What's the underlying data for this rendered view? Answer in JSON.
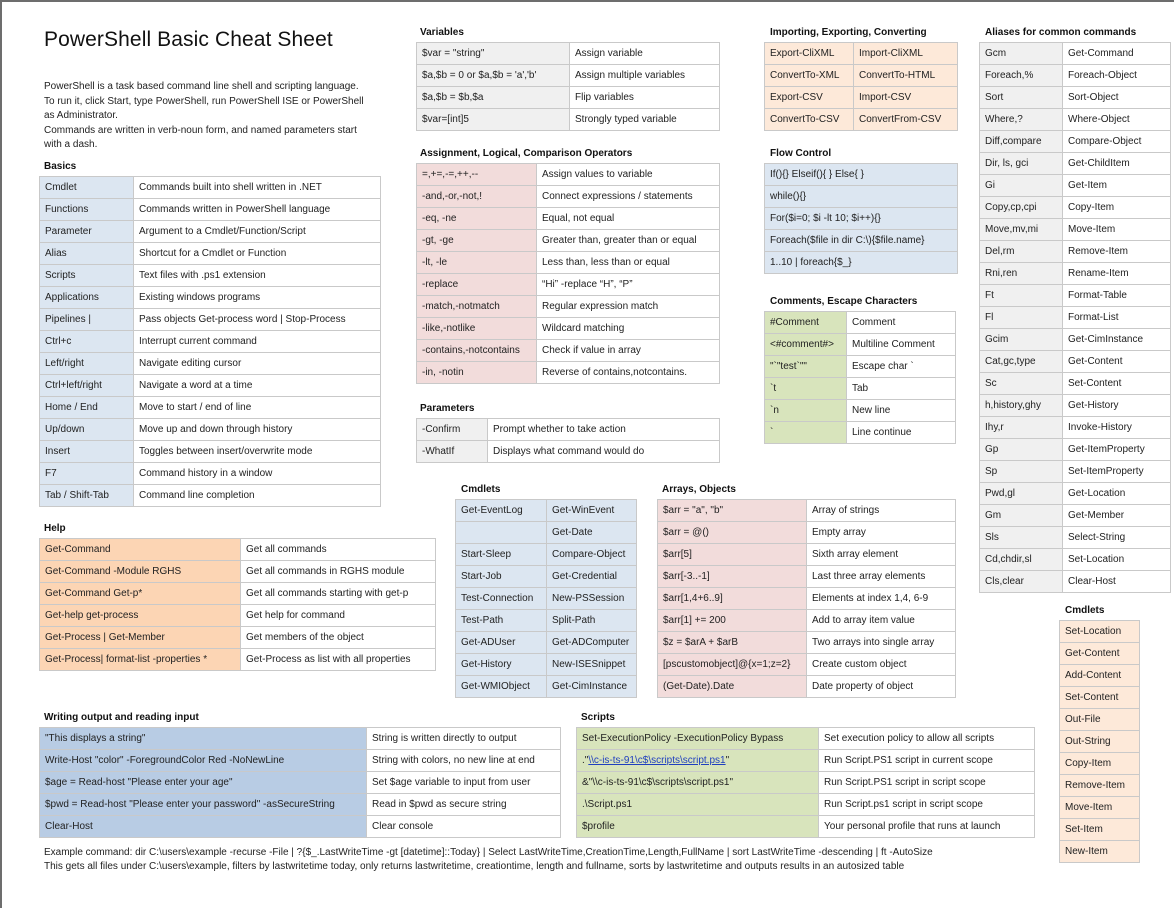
{
  "document": {
    "title": "PowerShell Basic Cheat Sheet",
    "intro": [
      "PowerShell is a task based command line shell and scripting language.  To run it, click Start, type PowerShell, run PowerShell ISE or PowerShell as Administrator.",
      "Commands are written in verb-noun form, and named parameters start with a dash."
    ]
  },
  "basics": {
    "heading": "Basics",
    "rows": [
      {
        "k": "Cmdlet",
        "v": "Commands built into shell written in .NET"
      },
      {
        "k": "Functions",
        "v": "Commands written in PowerShell language"
      },
      {
        "k": "Parameter",
        "v": "Argument to a Cmdlet/Function/Script"
      },
      {
        "k": "Alias",
        "v": "Shortcut for a Cmdlet or Function"
      },
      {
        "k": "Scripts",
        "v": "Text files with .ps1 extension"
      },
      {
        "k": "Applications",
        "v": "Existing windows programs"
      },
      {
        "k": "Pipelines |",
        "v": "Pass objects Get-process word | Stop-Process"
      },
      {
        "k": "Ctrl+c",
        "v": "Interrupt current command"
      },
      {
        "k": "Left/right",
        "v": "Navigate editing cursor"
      },
      {
        "k": "Ctrl+left/right",
        "v": "Navigate a word at a time"
      },
      {
        "k": "Home / End",
        "v": "Move to start / end of line"
      },
      {
        "k": "Up/down",
        "v": "Move up and down through history"
      },
      {
        "k": "Insert",
        "v": "Toggles between insert/overwrite mode"
      },
      {
        "k": "F7",
        "v": "Command history in a window"
      },
      {
        "k": "Tab / Shift-Tab",
        "v": "Command line completion"
      }
    ]
  },
  "help": {
    "heading": "Help",
    "rows": [
      {
        "k": "Get-Command",
        "v": "Get all commands"
      },
      {
        "k": "Get-Command -Module RGHS",
        "v": "Get all commands in RGHS module"
      },
      {
        "k": "Get-Command Get-p*",
        "v": "Get all commands starting with get-p"
      },
      {
        "k": "Get-help get-process",
        "v": "Get help for command"
      },
      {
        "k": "Get-Process | Get-Member",
        "v": "Get members of the object"
      },
      {
        "k": "Get-Process| format-list -properties *",
        "v": "Get-Process  as list with all properties"
      }
    ]
  },
  "variables": {
    "heading": "Variables",
    "rows": [
      {
        "k": "$var = \"string\"",
        "v": "Assign variable"
      },
      {
        "k": "$a,$b = 0 or $a,$b = 'a','b'",
        "v": "Assign multiple variables"
      },
      {
        "k": "$a,$b = $b,$a",
        "v": "Flip variables"
      },
      {
        "k": "$var=[int]5",
        "v": "Strongly typed variable"
      }
    ]
  },
  "operators": {
    "heading": "Assignment, Logical, Comparison Operators",
    "rows": [
      {
        "k": "=,+=,-=,++,--",
        "v": "Assign values to variable"
      },
      {
        "k": "-and,-or,-not,!",
        "v": "Connect expressions / statements"
      },
      {
        "k": "-eq, -ne",
        "v": "Equal, not equal"
      },
      {
        "k": "-gt, -ge",
        "v": "Greater than, greater than or equal"
      },
      {
        "k": "-lt, -le",
        "v": "Less than, less than or equal"
      },
      {
        "k": "-replace",
        "v": "“Hi” -replace “H”, “P”"
      },
      {
        "k": "-match,-notmatch",
        "v": "Regular expression match"
      },
      {
        "k": "-like,-notlike",
        "v": "Wildcard matching"
      },
      {
        "k": "-contains,-notcontains",
        "v": "Check if value in array"
      },
      {
        "k": "-in, -notin",
        "v": "Reverse of contains,notcontains."
      }
    ]
  },
  "parameters": {
    "heading": "Parameters",
    "rows": [
      {
        "k": "-Confirm",
        "v": "Prompt whether to take action"
      },
      {
        "k": "-WhatIf",
        "v": "Displays what command would do"
      }
    ]
  },
  "cmdlets_mid": {
    "heading": "Cmdlets",
    "rows": [
      {
        "a": "Get-EventLog",
        "b": "Get-WinEvent"
      },
      {
        "a": "",
        "b": "Get-Date"
      },
      {
        "a": "Start-Sleep",
        "b": "Compare-Object"
      },
      {
        "a": "Start-Job",
        "b": "Get-Credential"
      },
      {
        "a": "Test-Connection",
        "b": "New-PSSession"
      },
      {
        "a": "Test-Path",
        "b": "Split-Path"
      },
      {
        "a": "Get-ADUser",
        "b": "Get-ADComputer"
      },
      {
        "a": "Get-History",
        "b": "New-ISESnippet"
      },
      {
        "a": "Get-WMIObject",
        "b": "Get-CimInstance"
      }
    ]
  },
  "arrays": {
    "heading": "Arrays, Objects",
    "rows": [
      {
        "k": "$arr = \"a\", \"b\"",
        "v": "Array of strings"
      },
      {
        "k": "$arr = @()",
        "v": "Empty array"
      },
      {
        "k": "$arr[5]",
        "v": "Sixth array element"
      },
      {
        "k": "$arr[-3..-1]",
        "v": "Last three array elements"
      },
      {
        "k": "$arr[1,4+6..9]",
        "v": "Elements at index 1,4, 6-9"
      },
      {
        "k": "$arr[1] += 200",
        "v": "Add to array item value"
      },
      {
        "k": "$z = $arA + $arB",
        "v": "Two arrays into single array"
      },
      {
        "k": "[pscustomobject]@{x=1;z=2}",
        "v": "Create custom object"
      },
      {
        "k": "(Get-Date).Date",
        "v": "Date property of object"
      }
    ]
  },
  "import_export": {
    "heading": "Importing, Exporting, Converting",
    "rows": [
      {
        "a": "Export-CliXML",
        "b": "Import-CliXML"
      },
      {
        "a": "ConvertTo-XML",
        "b": "ConvertTo-HTML"
      },
      {
        "a": "Export-CSV",
        "b": "Import-CSV"
      },
      {
        "a": "ConvertTo-CSV",
        "b": "ConvertFrom-CSV"
      }
    ]
  },
  "flow": {
    "heading": "Flow Control",
    "rows": [
      "If(){} Elseif(){ } Else{ }",
      "while(){}",
      "For($i=0; $i -lt 10; $i++){}",
      "Foreach($file in dir C:\\){$file.name}",
      "1..10 | foreach{$_}"
    ]
  },
  "comments": {
    "heading": "Comments, Escape Characters",
    "rows": [
      {
        "k": "#Comment",
        "v": "Comment"
      },
      {
        "k": "<#comment#>",
        "v": "Multiline Comment"
      },
      {
        "k": "\"`\"test`\"\"",
        "v": "Escape char `"
      },
      {
        "k": "`t",
        "v": "Tab"
      },
      {
        "k": "`n",
        "v": "New line"
      },
      {
        "k": "`",
        "v": "Line continue"
      }
    ]
  },
  "aliases": {
    "heading": "Aliases for common commands",
    "rows": [
      {
        "k": "Gcm",
        "v": "Get-Command"
      },
      {
        "k": "Foreach,%",
        "v": "Foreach-Object"
      },
      {
        "k": "Sort",
        "v": "Sort-Object"
      },
      {
        "k": "Where,?",
        "v": "Where-Object"
      },
      {
        "k": "Diff,compare",
        "v": "Compare-Object"
      },
      {
        "k": "Dir, ls, gci",
        "v": "Get-ChildItem"
      },
      {
        "k": "Gi",
        "v": "Get-Item"
      },
      {
        "k": "Copy,cp,cpi",
        "v": "Copy-Item"
      },
      {
        "k": "Move,mv,mi",
        "v": "Move-Item"
      },
      {
        "k": "Del,rm",
        "v": "Remove-Item"
      },
      {
        "k": "Rni,ren",
        "v": "Rename-Item"
      },
      {
        "k": "Ft",
        "v": "Format-Table"
      },
      {
        "k": "Fl",
        "v": "Format-List"
      },
      {
        "k": "Gcim",
        "v": "Get-CimInstance"
      },
      {
        "k": "Cat,gc,type",
        "v": "Get-Content"
      },
      {
        "k": "Sc",
        "v": "Set-Content"
      },
      {
        "k": "h,history,ghy",
        "v": "Get-History"
      },
      {
        "k": "Ihy,r",
        "v": "Invoke-History"
      },
      {
        "k": "Gp",
        "v": "Get-ItemProperty"
      },
      {
        "k": "Sp",
        "v": "Set-ItemProperty"
      },
      {
        "k": "Pwd,gl",
        "v": "Get-Location"
      },
      {
        "k": "Gm",
        "v": "Get-Member"
      },
      {
        "k": "Sls",
        "v": "Select-String"
      },
      {
        "k": "Cd,chdir,sl",
        "v": "Set-Location"
      },
      {
        "k": "Cls,clear",
        "v": "Clear-Host"
      }
    ]
  },
  "cmdlets_right": {
    "heading": "Cmdlets",
    "rows": [
      "Set-Location",
      "Get-Content",
      "Add-Content",
      "Set-Content",
      "Out-File",
      "Out-String",
      "Copy-Item",
      "Remove-Item",
      "Move-Item",
      "Set-Item",
      "New-Item"
    ]
  },
  "output_input": {
    "heading": "Writing output and reading input",
    "rows": [
      {
        "k": "\"This displays a string\"",
        "v": "String is written directly to output"
      },
      {
        "k": "Write-Host \"color\" -ForegroundColor Red -NoNewLine",
        "v": "String with colors, no new line at end"
      },
      {
        "k": "$age = Read-host \"Please enter your age\"",
        "v": "Set $age variable to input from user"
      },
      {
        "k": "$pwd = Read-host \"Please enter your password\" -asSecureString",
        "v": "Read in $pwd as secure string"
      },
      {
        "k": "Clear-Host",
        "v": "Clear console"
      }
    ]
  },
  "scripts": {
    "heading": "Scripts",
    "rows": [
      {
        "k": "Set-ExecutionPolicy -ExecutionPolicy Bypass",
        "v": "Set execution policy to allow all scripts"
      },
      {
        "k_prefix": ".\"",
        "k_link": "\\\\c-is-ts-91\\c$\\scripts\\script.ps1",
        "k_suffix": "\"",
        "v": "Run Script.PS1 script in current scope"
      },
      {
        "k": "&\"\\\\c-is-ts-91\\c$\\scripts\\script.ps1\"",
        "v": "Run Script.PS1 script in script scope"
      },
      {
        "k": ".\\Script.ps1",
        "v": "Run Script.ps1 script in script scope"
      },
      {
        "k": "$profile",
        "v": "Your personal profile that runs at launch"
      }
    ]
  },
  "footer": {
    "line1": "Example command:  dir C:\\users\\example -recurse -File | ?{$_.LastWriteTime -gt [datetime]::Today} | Select LastWriteTime,CreationTime,Length,FullName | sort LastWriteTime -descending | ft -AutoSize",
    "line2": "This gets all files under C:\\users\\example, filters by lastwritetime today, only returns lastwritetime, creationtime, length and fullname, sorts by lastwritetime and outputs results in an autosized table"
  },
  "colors": {
    "gray": "#f0f0f0",
    "blue": "#dce6f1",
    "blue_dark": "#b8cce4",
    "pink": "#f2dcdb",
    "peach": "#fde9d9",
    "peach_dark": "#fcd5b4",
    "green": "#d8e4bc",
    "link": "#1f3fbf"
  }
}
